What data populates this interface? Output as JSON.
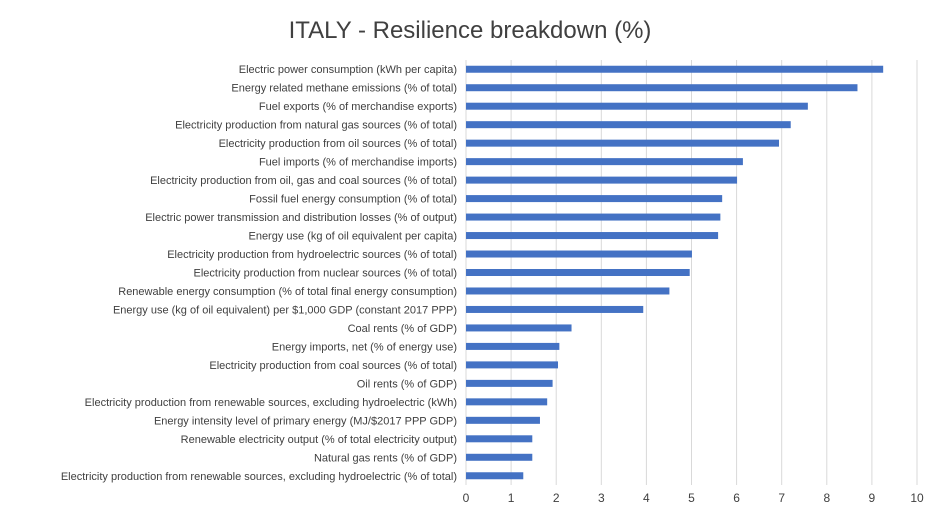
{
  "chart_data": {
    "type": "bar",
    "orientation": "horizontal",
    "title": "ITALY - Resilience breakdown (%)",
    "xlabel": "",
    "ylabel": "",
    "xlim": [
      0,
      10
    ],
    "xticks": [
      "0",
      "1",
      "2",
      "3",
      "4",
      "5",
      "6",
      "7",
      "8",
      "9",
      "10"
    ],
    "grid": true,
    "bar_color": "#4472C4",
    "categories": [
      "Electric power consumption (kWh per capita)",
      "Energy related methane emissions (% of total)",
      "Fuel exports (% of merchandise exports)",
      "Electricity production from natural gas sources (% of total)",
      "Electricity production from oil sources (% of total)",
      "Fuel imports (% of merchandise imports)",
      "Electricity production from oil, gas and coal sources (% of total)",
      "Fossil fuel energy consumption (% of total)",
      "Electric power transmission and distribution losses (% of output)",
      "Energy use (kg of oil equivalent per capita)",
      "Electricity production from hydroelectric sources (% of total)",
      "Electricity production from nuclear sources (% of total)",
      "Renewable energy consumption (% of total final energy consumption)",
      "Energy use (kg of oil equivalent) per $1,000 GDP (constant 2017 PPP)",
      "Coal rents (% of GDP)",
      "Energy imports, net (% of energy use)",
      "Electricity production from coal sources (% of total)",
      "Oil rents (% of GDP)",
      "Electricity production from renewable sources, excluding hydroelectric (kWh)",
      "Energy intensity level of primary energy (MJ/$2017 PPP GDP)",
      "Renewable electricity output (% of total electricity output)",
      "Natural gas rents (% of GDP)",
      "Electricity production from renewable sources, excluding hydroelectric (% of total)"
    ],
    "values": [
      9.25,
      8.68,
      7.58,
      7.2,
      6.94,
      6.14,
      6.01,
      5.68,
      5.64,
      5.59,
      5.01,
      4.96,
      4.51,
      3.93,
      2.34,
      2.07,
      2.04,
      1.92,
      1.8,
      1.64,
      1.47,
      1.47,
      1.27
    ]
  }
}
